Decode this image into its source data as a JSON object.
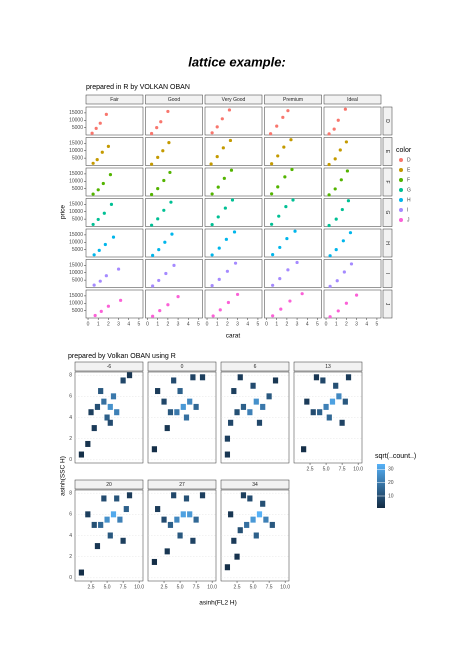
{
  "title": "lattice example:",
  "chart_data": [
    {
      "type": "scatter",
      "title": "prepared in R by VOLKAN OBAN",
      "x_label": "carat",
      "y_label": "price",
      "columns": [
        "Fair",
        "Good",
        "Very Good",
        "Premium",
        "Ideal"
      ],
      "xlim": [
        -0.2,
        5.4
      ],
      "xticks": [
        0,
        1,
        2,
        3,
        4,
        5
      ],
      "ylim": [
        0,
        19000
      ],
      "yticks": [
        5000,
        10000,
        15000
      ],
      "legend_title": "color",
      "series": [
        {
          "name": "D",
          "color": "#F8766D",
          "x": [
            [
              0.4,
              0.8,
              1.2,
              1.8
            ],
            [
              0.4,
              0.9,
              1.3,
              2.0
            ],
            [
              0.5,
              1.0,
              1.5,
              2.2
            ],
            [
              0.4,
              1.0,
              1.6,
              2.1
            ],
            [
              0.3,
              0.8,
              1.2,
              1.9
            ]
          ],
          "y": [
            [
              1200,
              4500,
              8000,
              14000
            ],
            [
              1000,
              5000,
              9000,
              16000
            ],
            [
              1500,
              5500,
              11000,
              17000
            ],
            [
              900,
              6000,
              12000,
              16500
            ],
            [
              800,
              4000,
              10000,
              17500
            ]
          ]
        },
        {
          "name": "E",
          "color": "#C49A00",
          "x": [
            [
              0.5,
              0.9,
              1.4,
              2.0
            ],
            [
              0.4,
              1.0,
              1.5,
              2.1
            ],
            [
              0.4,
              1.0,
              1.6,
              2.3
            ],
            [
              0.5,
              1.1,
              1.7,
              2.4
            ],
            [
              0.3,
              0.9,
              1.4,
              2.0
            ]
          ],
          "y": [
            [
              1500,
              4000,
              9000,
              13000
            ],
            [
              900,
              5500,
              10000,
              15500
            ],
            [
              1000,
              6000,
              12000,
              17000
            ],
            [
              1200,
              6500,
              12500,
              17500
            ],
            [
              700,
              4500,
              10500,
              16000
            ]
          ]
        },
        {
          "name": "F",
          "color": "#53B400",
          "x": [
            [
              0.5,
              1.0,
              1.5,
              2.2
            ],
            [
              0.4,
              1.0,
              1.6,
              2.2
            ],
            [
              0.5,
              1.1,
              1.7,
              2.4
            ],
            [
              0.5,
              1.1,
              1.8,
              2.5
            ],
            [
              0.3,
              0.9,
              1.5,
              2.1
            ]
          ],
          "y": [
            [
              1300,
              4200,
              8500,
              14500
            ],
            [
              1000,
              5000,
              10500,
              16000
            ],
            [
              1400,
              6000,
              12000,
              17500
            ],
            [
              1500,
              6200,
              13000,
              18000
            ],
            [
              800,
              4800,
              11000,
              17000
            ]
          ]
        },
        {
          "name": "G",
          "color": "#00C094",
          "x": [
            [
              0.5,
              1.0,
              1.6,
              2.3
            ],
            [
              0.4,
              1.0,
              1.6,
              2.3
            ],
            [
              0.5,
              1.1,
              1.8,
              2.5
            ],
            [
              0.5,
              1.2,
              1.9,
              2.6
            ],
            [
              0.3,
              1.0,
              1.6,
              2.2
            ]
          ],
          "y": [
            [
              1400,
              4800,
              9000,
              15000
            ],
            [
              900,
              5200,
              11000,
              16500
            ],
            [
              1300,
              6500,
              12500,
              18000
            ],
            [
              1500,
              7000,
              13500,
              18000
            ],
            [
              700,
              5000,
              11500,
              17500
            ]
          ]
        },
        {
          "name": "H",
          "color": "#00B6EB",
          "x": [
            [
              0.6,
              1.1,
              1.7,
              2.5
            ],
            [
              0.5,
              1.1,
              1.7,
              2.4
            ],
            [
              0.5,
              1.2,
              1.9,
              2.7
            ],
            [
              0.6,
              1.3,
              2.0,
              2.8
            ],
            [
              0.4,
              1.0,
              1.7,
              2.4
            ]
          ],
          "y": [
            [
              1500,
              4500,
              8500,
              13500
            ],
            [
              1100,
              5000,
              10000,
              15500
            ],
            [
              1400,
              6000,
              12000,
              17000
            ],
            [
              1600,
              6500,
              12500,
              17500
            ],
            [
              900,
              5000,
              11000,
              16500
            ]
          ]
        },
        {
          "name": "I",
          "color": "#A58AFF",
          "x": [
            [
              0.6,
              1.2,
              1.8,
              3.0
            ],
            [
              0.5,
              1.1,
              1.8,
              2.6
            ],
            [
              0.5,
              1.2,
              2.0,
              2.8
            ],
            [
              0.6,
              1.3,
              2.1,
              3.0
            ],
            [
              0.4,
              1.1,
              1.8,
              2.5
            ]
          ],
          "y": [
            [
              1600,
              4300,
              8000,
              12500
            ],
            [
              1000,
              4800,
              9500,
              15000
            ],
            [
              1300,
              5500,
              11000,
              16500
            ],
            [
              1500,
              6000,
              12000,
              17000
            ],
            [
              800,
              4600,
              10500,
              16000
            ]
          ]
        },
        {
          "name": "J",
          "color": "#FB61D7",
          "x": [
            [
              0.7,
              1.3,
              2.0,
              3.2
            ],
            [
              0.5,
              1.2,
              2.0,
              3.0
            ],
            [
              0.6,
              1.3,
              2.1,
              3.0
            ],
            [
              0.6,
              1.4,
              2.3,
              3.5
            ],
            [
              0.4,
              1.2,
              2.0,
              3.0
            ]
          ],
          "y": [
            [
              1700,
              4500,
              8000,
              12000
            ],
            [
              1200,
              5000,
              9000,
              14500
            ],
            [
              1400,
              5500,
              10500,
              16000
            ],
            [
              1500,
              6000,
              11500,
              16500
            ],
            [
              900,
              4800,
              10000,
              15500
            ]
          ]
        }
      ]
    },
    {
      "type": "hexbin",
      "title": "prepared by Volkan OBAN using R",
      "x_label": "asinh(FL2 H)",
      "y_label": "asinh(SSC H)",
      "xlim": [
        0,
        10.6
      ],
      "xticks": [
        2.5,
        {
          "value": 5,
          "label": "5.0"
        },
        7.5,
        {
          "value": 10,
          "label": "10.0"
        }
      ],
      "ylim": [
        -0.3,
        8.3
      ],
      "yticks": [
        0,
        2,
        4,
        6,
        8
      ],
      "legend_title": "sqrt(..count..)",
      "clim": [
        1,
        34
      ],
      "cticks": [
        10,
        20,
        30
      ],
      "colors": [
        "#132B43",
        "#56B1F7"
      ],
      "panels": [
        {
          "name": "-6",
          "x": [
            2.5,
            3.5,
            4.5,
            5.5,
            6.5,
            5.0,
            6.0,
            4.0,
            3.0,
            7.5,
            2.0,
            1.0,
            8.5,
            5.5
          ],
          "y": [
            4.5,
            5.0,
            5.5,
            5.0,
            4.5,
            4.0,
            6.0,
            6.5,
            3.0,
            7.5,
            1.5,
            0.5,
            8.0,
            3.5
          ],
          "count": [
            6,
            10,
            18,
            26,
            22,
            14,
            20,
            12,
            5,
            8,
            3,
            2,
            4,
            9
          ]
        },
        {
          "name": "0",
          "x": [
            1.5,
            2.5,
            3.5,
            4.5,
            5.5,
            6.5,
            7.5,
            5.0,
            6.0,
            4.0,
            8.5,
            3.0,
            1.0,
            7.0
          ],
          "y": [
            6.5,
            5.5,
            4.5,
            4.5,
            5.0,
            5.5,
            5.0,
            6.5,
            4.0,
            7.5,
            7.8,
            3.0,
            1.0,
            7.8
          ],
          "count": [
            5,
            8,
            12,
            20,
            28,
            24,
            16,
            14,
            18,
            9,
            6,
            4,
            2,
            7
          ]
        },
        {
          "name": "6",
          "x": [
            1.0,
            1.0,
            1.5,
            2.5,
            3.5,
            4.5,
            5.5,
            6.5,
            7.5,
            5.0,
            3.0,
            2.0,
            8.5,
            6.0
          ],
          "y": [
            0.5,
            2.0,
            3.5,
            4.5,
            5.0,
            4.5,
            5.5,
            5.0,
            6.0,
            7.0,
            7.8,
            6.5,
            7.5,
            3.5
          ],
          "count": [
            4,
            6,
            8,
            10,
            14,
            22,
            26,
            20,
            12,
            9,
            5,
            6,
            4,
            8
          ]
        },
        {
          "name": "13",
          "x": [
            2.0,
            3.0,
            4.0,
            5.0,
            6.0,
            7.0,
            8.0,
            5.5,
            6.5,
            4.5,
            1.5,
            8.5,
            3.5,
            7.5
          ],
          "y": [
            5.5,
            4.5,
            4.5,
            5.0,
            5.5,
            6.0,
            5.5,
            4.0,
            7.0,
            7.5,
            1.0,
            7.8,
            7.8,
            3.5
          ],
          "count": [
            5,
            9,
            14,
            22,
            30,
            24,
            12,
            16,
            10,
            8,
            2,
            5,
            4,
            7
          ]
        },
        {
          "name": "20",
          "x": [
            2.0,
            3.0,
            4.0,
            5.0,
            6.0,
            7.0,
            8.0,
            5.5,
            4.5,
            6.5,
            1.0,
            3.5,
            8.5,
            7.5
          ],
          "y": [
            6.0,
            5.0,
            5.0,
            5.5,
            6.0,
            5.5,
            6.5,
            4.0,
            7.5,
            7.5,
            0.5,
            3.0,
            7.8,
            3.5
          ],
          "count": [
            6,
            10,
            16,
            26,
            32,
            22,
            14,
            12,
            9,
            11,
            2,
            4,
            5,
            6
          ]
        },
        {
          "name": "27",
          "x": [
            1.5,
            2.5,
            3.5,
            4.5,
            5.5,
            6.5,
            7.5,
            5.0,
            6.0,
            4.0,
            8.5,
            3.0,
            1.0,
            7.0
          ],
          "y": [
            6.5,
            5.5,
            5.0,
            5.5,
            6.0,
            6.0,
            5.5,
            4.0,
            7.5,
            7.8,
            7.8,
            2.5,
            1.5,
            3.5
          ],
          "count": [
            5,
            9,
            14,
            24,
            30,
            28,
            16,
            12,
            10,
            8,
            6,
            4,
            2,
            7
          ]
        },
        {
          "name": "34",
          "x": [
            1.0,
            2.0,
            3.0,
            4.0,
            5.0,
            6.0,
            7.0,
            8.0,
            5.5,
            4.5,
            3.5,
            6.5,
            1.5,
            2.5
          ],
          "y": [
            1.0,
            3.5,
            4.5,
            5.0,
            5.5,
            6.0,
            5.5,
            5.0,
            4.0,
            7.5,
            7.8,
            7.0,
            6.0,
            2.0
          ],
          "count": [
            2,
            5,
            10,
            18,
            28,
            34,
            22,
            12,
            14,
            9,
            6,
            10,
            4,
            3
          ]
        }
      ]
    }
  ]
}
